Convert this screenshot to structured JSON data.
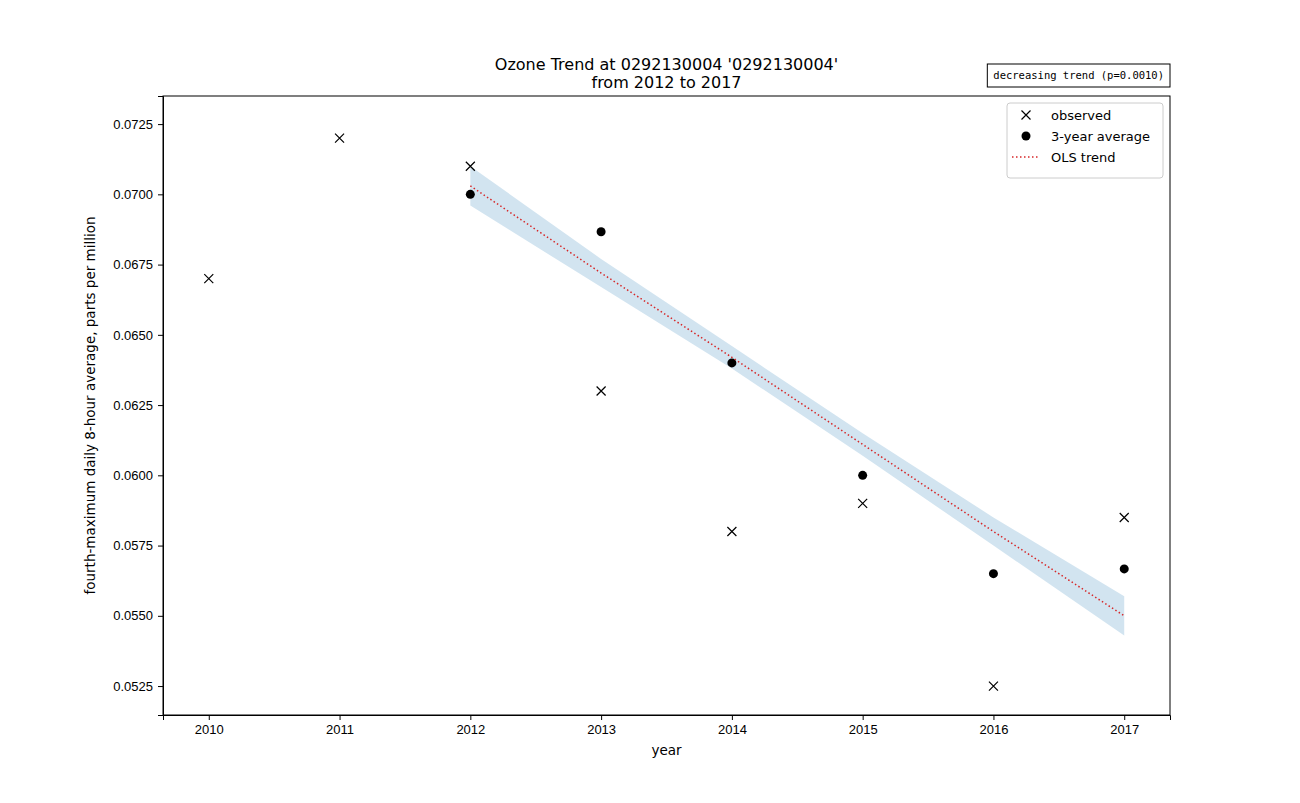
{
  "chart_data": {
    "type": "scatter",
    "title": "Ozone Trend at 0292130004 '0292130004'",
    "subtitle": "from 2012 to 2017",
    "annotation": "decreasing trend (p=0.0010)",
    "x_label": "year",
    "y_label": "fourth-maximum daily 8-hour average, parts per million",
    "x": [
      2010,
      2011,
      2012,
      2013,
      2014,
      2015,
      2016,
      2017
    ],
    "series": [
      {
        "name": "observed",
        "type": "scatter",
        "marker": "x",
        "color": "#000000",
        "values": [
          0.067,
          0.072,
          0.071,
          0.063,
          0.058,
          0.059,
          0.0525,
          0.0585
        ]
      },
      {
        "name": "3-year average",
        "type": "scatter",
        "marker": "circle",
        "color": "#000000",
        "values": [
          null,
          null,
          0.07,
          0.06867,
          0.064,
          0.06,
          0.0565,
          0.05667
        ]
      },
      {
        "name": "OLS trend",
        "type": "line",
        "line_style": "dotted",
        "color": "#d62728",
        "values": [
          null,
          null,
          0.0703,
          0.0672,
          0.0642,
          0.0611,
          0.058,
          0.055
        ]
      }
    ],
    "confidence_band": {
      "color": "#1f77b4",
      "lower": [
        null,
        null,
        0.0696,
        0.0667,
        0.0638,
        0.0607,
        0.0575,
        0.0543
      ],
      "upper": [
        null,
        null,
        0.071,
        0.0677,
        0.0646,
        0.0615,
        0.0585,
        0.0557
      ]
    },
    "xlim": [
      2009.65,
      2017.35
    ],
    "xticks": [
      2010,
      2011,
      2012,
      2013,
      2014,
      2015,
      2016,
      2017
    ],
    "ylim": [
      0.05147,
      0.0735
    ],
    "yticks": [
      0.0525,
      {
        "value": 0.055,
        "label": "0.0550"
      },
      0.0575,
      {
        "value": 0.06,
        "label": "0.0600"
      },
      0.0625,
      {
        "value": 0.065,
        "label": "0.0650"
      },
      0.0675,
      {
        "value": 0.07,
        "label": "0.0700"
      },
      0.0725
    ],
    "legend": "upper right",
    "grid": false
  }
}
